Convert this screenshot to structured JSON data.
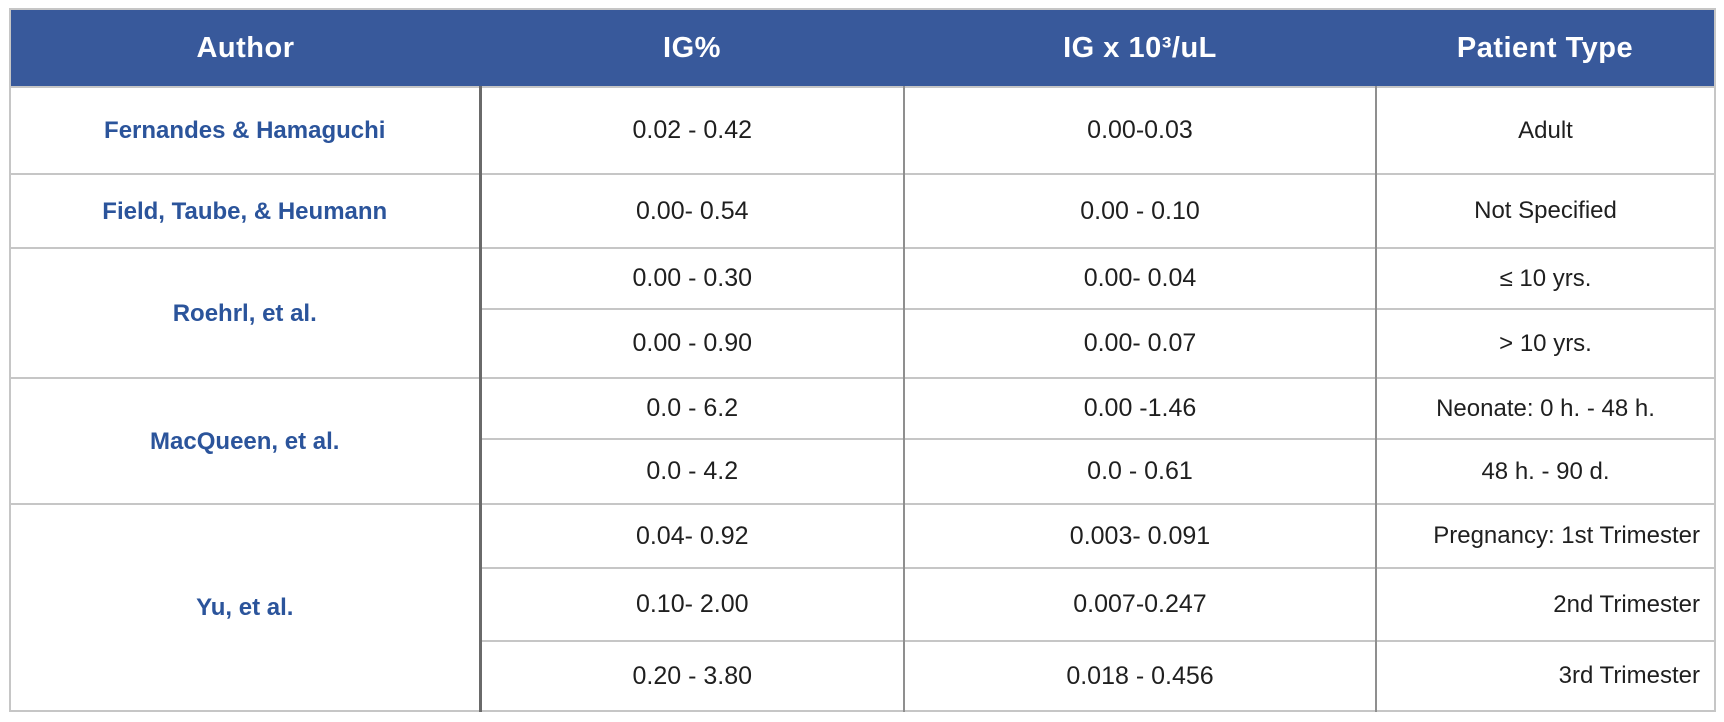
{
  "table": {
    "headers": [
      "Author",
      "IG%",
      "IG x 10³/uL",
      "Patient Type"
    ],
    "groups": [
      {
        "author": "Fernandes & Hamaguchi",
        "rows": [
          [
            "0.02 - 0.42",
            "0.00-0.03",
            "Adult"
          ]
        ]
      },
      {
        "author": "Field, Taube, & Heumann",
        "rows": [
          [
            "0.00- 0.54",
            "0.00 - 0.10",
            "Not Specified"
          ]
        ]
      },
      {
        "author": "Roehrl, et al.",
        "rows": [
          [
            "0.00 - 0.30",
            "0.00- 0.04",
            "≤ 10 yrs."
          ],
          [
            "0.00 - 0.90",
            "0.00- 0.07",
            "> 10 yrs."
          ]
        ]
      },
      {
        "author": "MacQueen, et al.",
        "rows": [
          [
            "0.0 - 6.2",
            "0.00 -1.46",
            "Neonate: 0 h. - 48 h."
          ],
          [
            "0.0 - 4.2",
            "0.0 - 0.61",
            "48 h. - 90 d."
          ]
        ]
      },
      {
        "author": "Yu, et al.",
        "rows": [
          [
            "0.04- 0.92",
            "0.003- 0.091",
            "Pregnancy: 1st Trimester"
          ],
          [
            "0.10- 2.00",
            "0.007-0.247",
            "2nd Trimester"
          ],
          [
            "0.20 - 3.80",
            "0.018 - 0.456",
            "3rd Trimester"
          ]
        ]
      }
    ],
    "patient_align_right_groups": [
      4
    ]
  },
  "colors": {
    "header_bg": "#38599B",
    "header_text": "#FFFFFF",
    "author_text": "#2B549B",
    "body_text": "#1F1F1F",
    "divider_dark": "#6A6A6A",
    "divider_medium": "#8F8F8F",
    "divider_light": "#C6C6C6"
  },
  "chart_data": {
    "type": "table",
    "columns": [
      "Author",
      "IG%",
      "IG x 10³/uL",
      "Patient Type"
    ],
    "rows": [
      [
        "Fernandes & Hamaguchi",
        "0.02 - 0.42",
        "0.00-0.03",
        "Adult"
      ],
      [
        "Field, Taube, & Heumann",
        "0.00- 0.54",
        "0.00 - 0.10",
        "Not Specified"
      ],
      [
        "Roehrl, et al.",
        "0.00 - 0.30",
        "0.00- 0.04",
        "≤ 10 yrs."
      ],
      [
        "Roehrl, et al.",
        "0.00 - 0.90",
        "0.00- 0.07",
        "> 10 yrs."
      ],
      [
        "MacQueen, et al.",
        "0.0 - 6.2",
        "0.00 -1.46",
        "Neonate: 0 h. - 48 h."
      ],
      [
        "MacQueen, et al.",
        "0.0 - 4.2",
        "0.0 - 0.61",
        "48 h. - 90 d."
      ],
      [
        "Yu, et al.",
        "0.04- 0.92",
        "0.003- 0.091",
        "Pregnancy: 1st Trimester"
      ],
      [
        "Yu, et al.",
        "0.10- 2.00",
        "0.007-0.247",
        "2nd Trimester"
      ],
      [
        "Yu, et al.",
        "0.20 - 3.80",
        "0.018 - 0.456",
        "3rd Trimester"
      ]
    ],
    "layout_hints": {
      "header_style": "blue background, white bold text, centered",
      "author_column_rowspans": [
        1,
        1,
        2,
        2,
        3
      ],
      "right_aligned_patient_rows": [
        "2nd Trimester",
        "3rd Trimester"
      ]
    }
  }
}
